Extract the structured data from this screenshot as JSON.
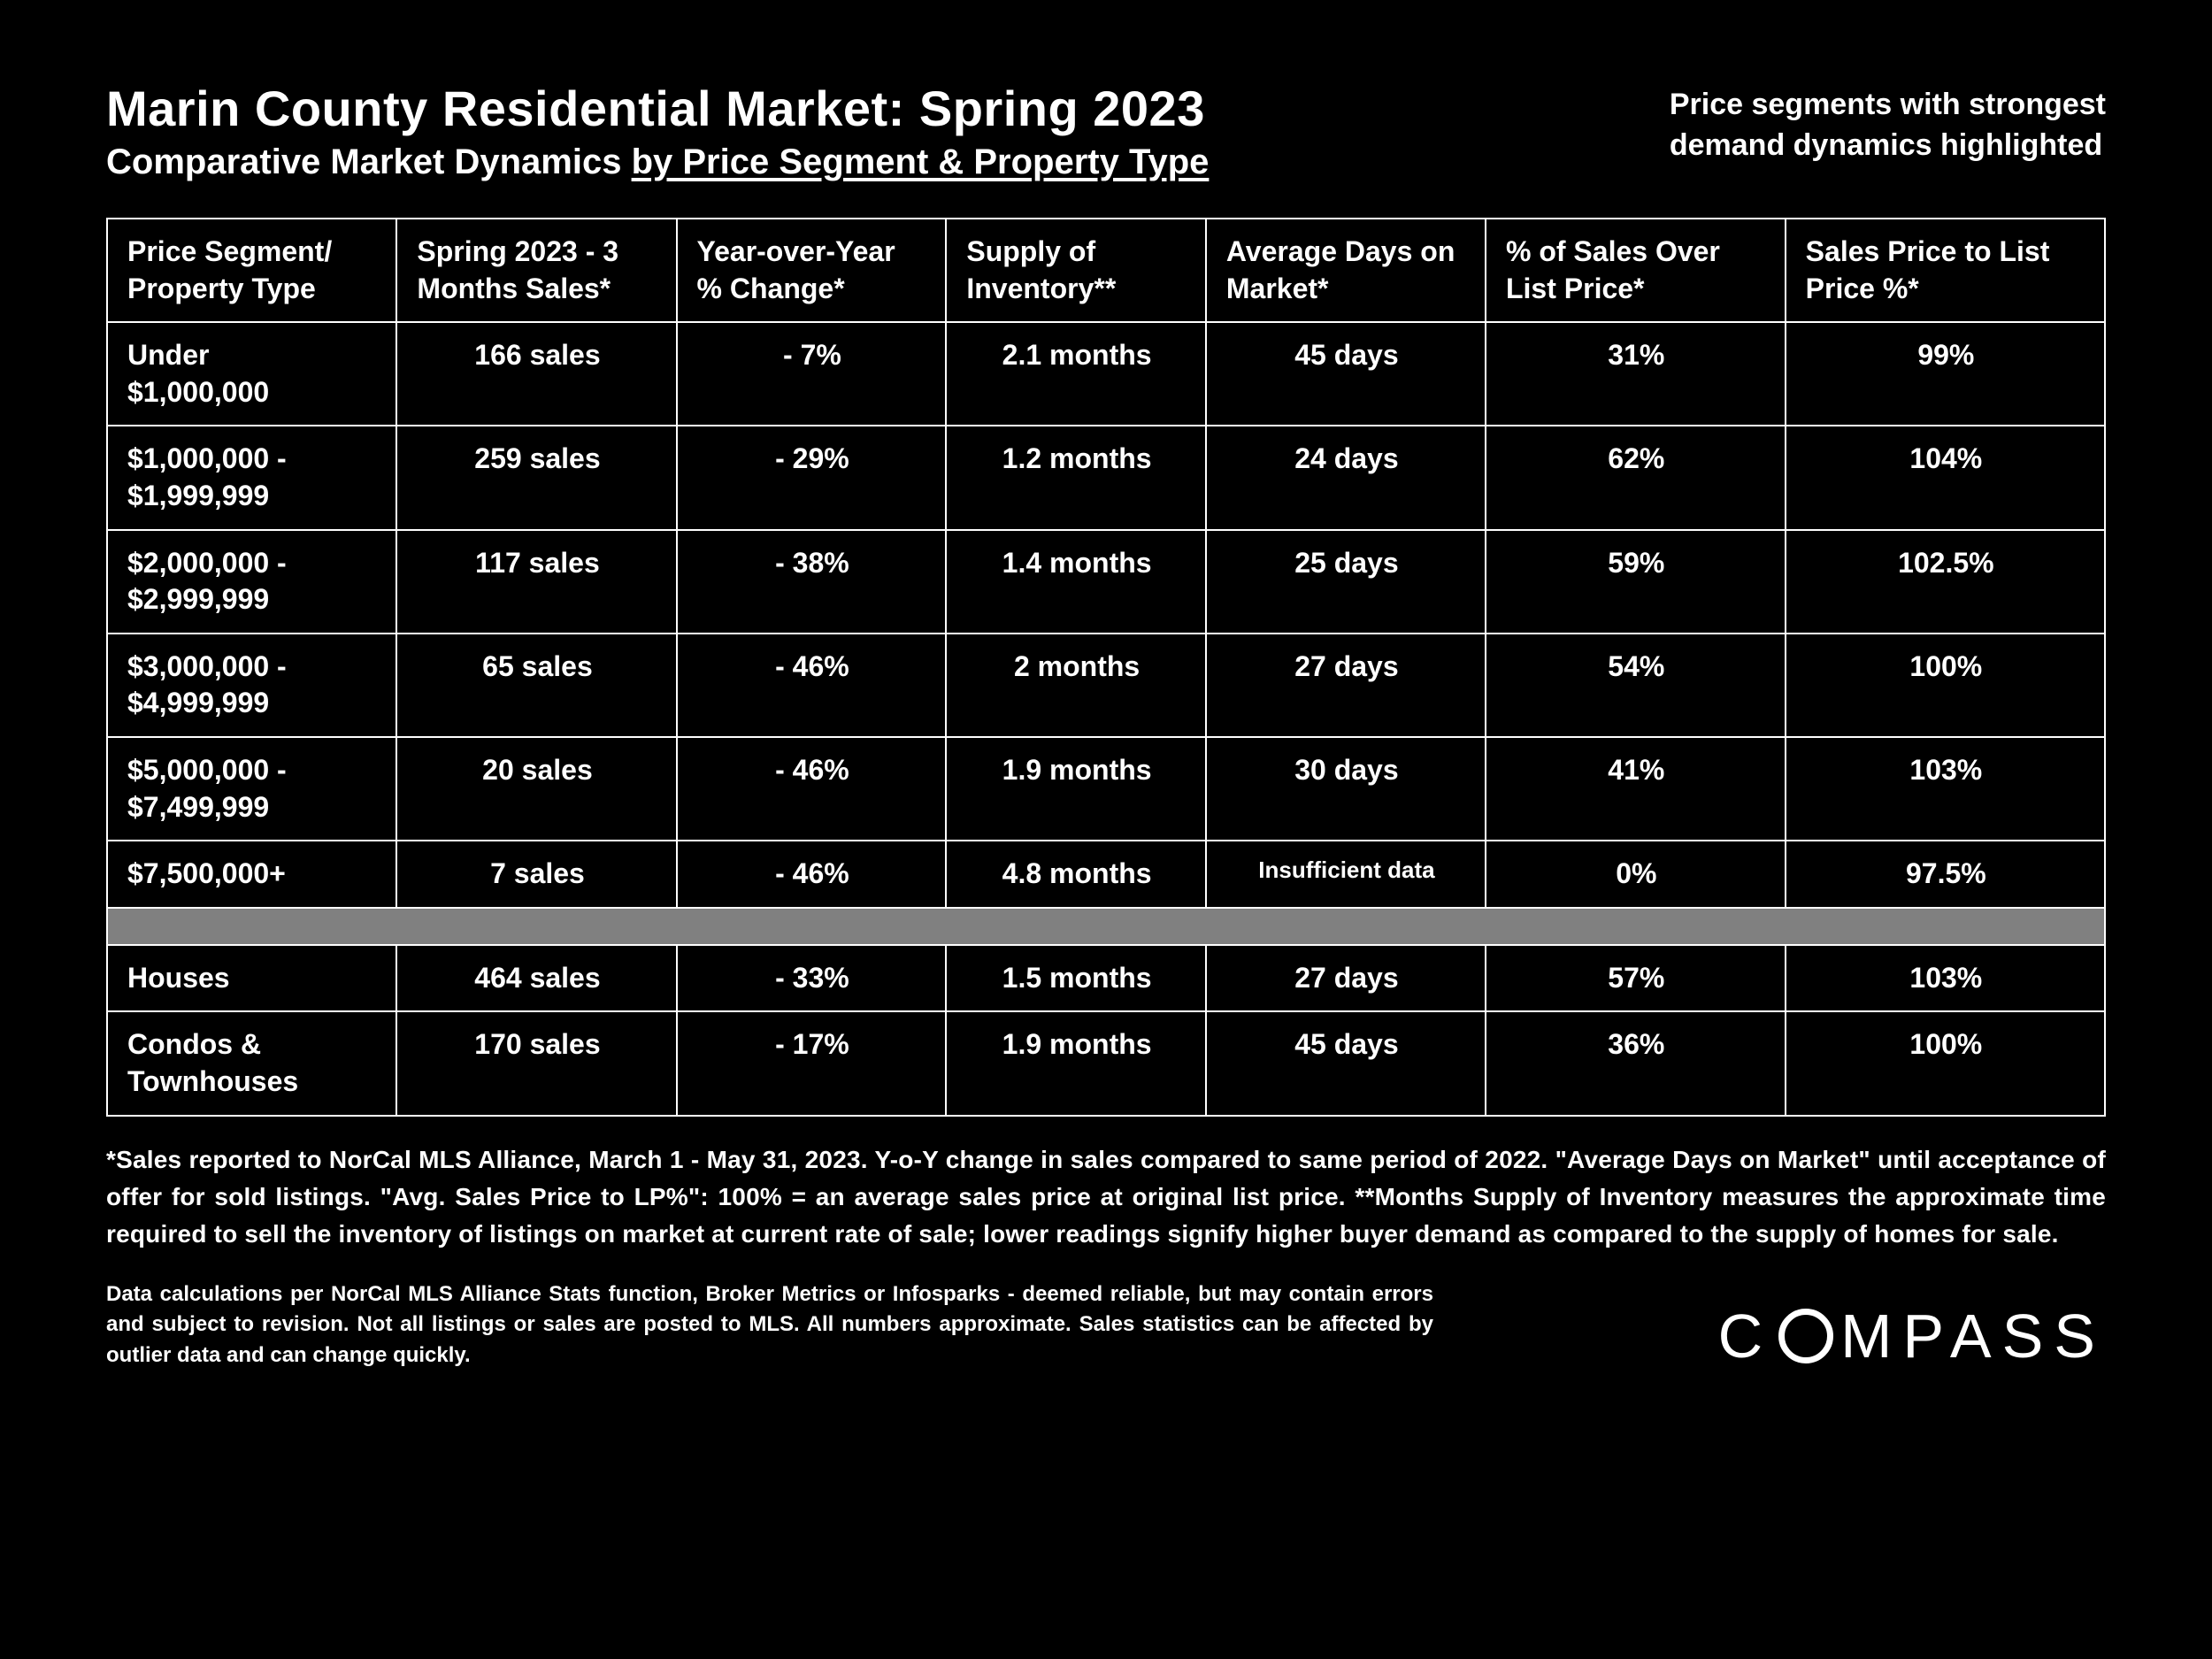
{
  "header": {
    "title": "Marin County Residential Market:  Spring 2023",
    "subtitle_prefix": "Comparative Market Dynamics ",
    "subtitle_underlined": "by Price Segment & Property Type",
    "callout_line1": "Price segments with strongest",
    "callout_line2": "demand dynamics highlighted"
  },
  "table": {
    "columns": [
      "Price Segment/ Property Type",
      "Spring 2023 - 3 Months Sales*",
      "Year-over-Year % Change*",
      "Supply of Inventory**",
      "Average Days on Market*",
      "% of Sales Over List Price*",
      "Sales Price to List Price %*"
    ],
    "rows_top": [
      {
        "segment_l1": "Under",
        "segment_l2": "$1,000,000",
        "sales": "166 sales",
        "yoy": "- 7%",
        "supply": "2.1 months",
        "dom": "45 days",
        "over_list": "31%",
        "sp_lp": "99%"
      },
      {
        "segment_l1": "$1,000,000 -",
        "segment_l2": "$1,999,999",
        "sales": "259 sales",
        "yoy": "- 29%",
        "supply": "1.2 months",
        "dom": "24 days",
        "over_list": "62%",
        "sp_lp": "104%"
      },
      {
        "segment_l1": "$2,000,000 -",
        "segment_l2": "$2,999,999",
        "sales": "117 sales",
        "yoy": "- 38%",
        "supply": "1.4 months",
        "dom": "25 days",
        "over_list": "59%",
        "sp_lp": "102.5%"
      },
      {
        "segment_l1": "$3,000,000 -",
        "segment_l2": "$4,999,999",
        "sales": "65 sales",
        "yoy": "- 46%",
        "supply": "2 months",
        "dom": "27 days",
        "over_list": "54%",
        "sp_lp": "100%"
      },
      {
        "segment_l1": "$5,000,000 -",
        "segment_l2": "$7,499,999",
        "sales": "20 sales",
        "yoy": "- 46%",
        "supply": "1.9 months",
        "dom": "30 days",
        "over_list": "41%",
        "sp_lp": "103%"
      },
      {
        "segment_l1": "$7,500,000+",
        "segment_l2": "",
        "sales": "7 sales",
        "yoy": "- 46%",
        "supply": "4.8 months",
        "dom": "Insufficient data",
        "dom_small": true,
        "over_list": "0%",
        "sp_lp": "97.5%"
      }
    ],
    "rows_bottom": [
      {
        "segment_l1": "Houses",
        "segment_l2": "",
        "sales": "464 sales",
        "yoy": "- 33%",
        "supply": "1.5 months",
        "dom": "27 days",
        "over_list": "57%",
        "sp_lp": "103%"
      },
      {
        "segment_l1": "Condos &",
        "segment_l2": "Townhouses",
        "sales": "170 sales",
        "yoy": "- 17%",
        "supply": "1.9 months",
        "dom": "45 days",
        "over_list": "36%",
        "sp_lp": "100%"
      }
    ]
  },
  "footnote1": "*Sales reported to NorCal MLS Alliance, March 1 - May 31, 2023. Y-o-Y change in sales compared to same period of 2022. \"Average Days on Market\" until acceptance of offer for sold listings. \"Avg. Sales Price to LP%\": 100% = an average sales price at original list price. **Months Supply of Inventory measures the approximate time required to sell the inventory of listings on market at current rate of sale; lower readings signify higher buyer demand as compared to the supply of homes for sale.",
  "footnote2": "Data calculations per NorCal MLS Alliance Stats function, Broker Metrics or Infosparks - deemed reliable, but may contain errors and subject to revision.  Not all listings or sales are posted to MLS. All numbers approximate. Sales statistics can be affected by outlier data and can change quickly.",
  "logo_text": "MPASS",
  "logo_prefix": "C",
  "colors": {
    "background": "#000000",
    "text": "#ffffff",
    "border": "#ffffff",
    "divider": "#808080"
  },
  "typography": {
    "title_fontsize": 56,
    "subtitle_fontsize": 40,
    "callout_fontsize": 34,
    "cell_fontsize": 32,
    "footnote1_fontsize": 28,
    "footnote2_fontsize": 24,
    "logo_fontsize": 70,
    "font_family": "Arial"
  }
}
